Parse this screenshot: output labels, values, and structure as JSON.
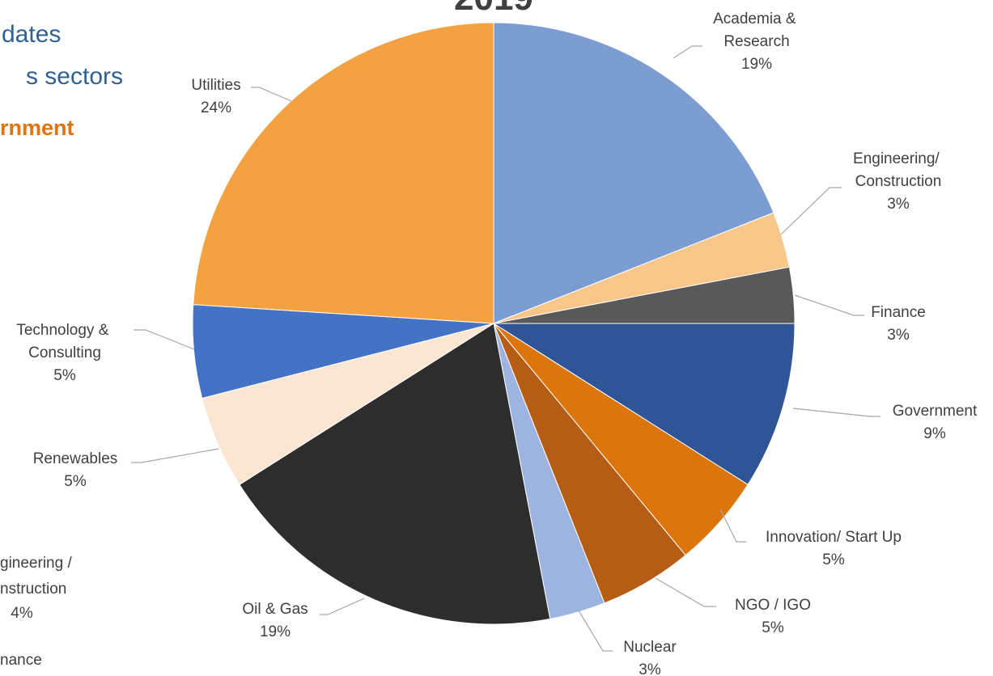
{
  "chart_data": {
    "type": "pie",
    "title": "2019",
    "categories": [
      "Academia & Research",
      "Engineering/ Construction",
      "Finance",
      "Government",
      "Innovation/ Start Up",
      "NGO / IGO",
      "Nuclear",
      "Oil & Gas",
      "Renewables",
      "Technology & Consulting",
      "Utilities"
    ],
    "values": [
      19,
      3,
      3,
      9,
      5,
      5,
      3,
      19,
      5,
      5,
      24
    ],
    "value_labels": [
      "19%",
      "3%",
      "3%",
      "9%",
      "5%",
      "5%",
      "3%",
      "19%",
      "5%",
      "5%",
      "24%"
    ],
    "colors": [
      "#7b9dd2",
      "#f9c68a",
      "#595959",
      "#2f5597",
      "#dc760c",
      "#b55d15",
      "#9db4e0",
      "#2d2d2d",
      "#fbe5d3",
      "#4472c4",
      "#f4a141"
    ],
    "annotations": [
      "dates",
      "s sectors",
      "rnment",
      "gineering /",
      "nstruction",
      "4%",
      "nance"
    ]
  }
}
